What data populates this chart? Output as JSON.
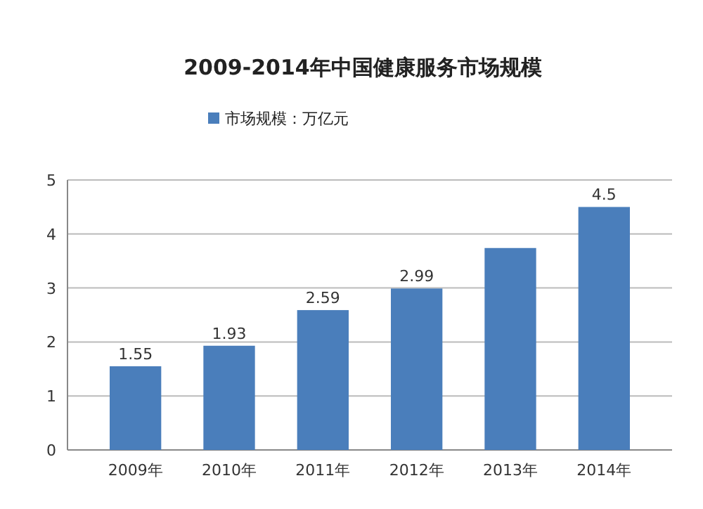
{
  "chart_data": {
    "type": "bar",
    "title": "2009-2014年中国健康服务市场规模",
    "categories": [
      "2009年",
      "2010年",
      "2011年",
      "2012年",
      "2013年",
      "2014年"
    ],
    "series": [
      {
        "name": "市场规模：万亿元",
        "color": "#4a7ebb",
        "values": [
          1.55,
          1.93,
          2.59,
          2.99,
          3.74,
          4.5
        ],
        "value_labels": [
          "1.55",
          "1.93",
          "2.59",
          "2.99",
          null,
          "4.5"
        ]
      }
    ],
    "ylim": [
      0,
      5
    ],
    "yticks": [
      0,
      1,
      2,
      3,
      4,
      5
    ],
    "grid": true,
    "legend": "top"
  }
}
